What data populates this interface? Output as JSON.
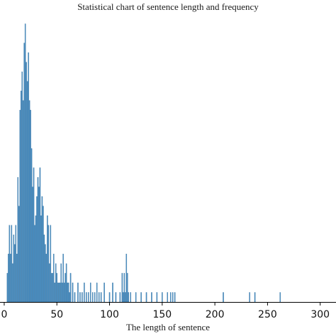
{
  "chart_data": {
    "type": "bar",
    "title": "Statistical chart of sentence length and frequency",
    "xlabel": "The length of sentence",
    "ylabel": "",
    "xlim": [
      -4,
      315
    ],
    "ylim": [
      0,
      30
    ],
    "xticks": [
      0,
      50,
      100,
      150,
      200,
      250,
      300
    ],
    "x_tick_labels": [
      "0",
      "50",
      "100",
      "150",
      "200",
      "250",
      "300"
    ],
    "grid": false,
    "bar_color": "#4a8ec2",
    "series": [
      {
        "x": [
          3,
          4,
          5,
          6,
          7,
          8,
          9,
          10,
          11,
          12,
          13,
          14,
          15,
          16,
          17,
          18,
          19,
          20,
          21,
          22,
          23,
          24,
          25,
          26,
          27,
          28,
          29,
          30,
          31,
          32,
          33,
          34,
          35,
          36,
          37,
          38,
          39,
          40,
          41,
          42,
          43,
          44,
          45,
          46,
          47,
          48,
          49,
          50,
          51,
          52,
          53,
          54,
          55,
          56,
          57,
          58,
          59,
          60,
          61,
          62,
          63,
          65,
          67,
          70,
          72,
          74,
          76,
          78,
          80,
          82,
          84,
          86,
          88,
          90,
          92,
          95,
          100,
          103,
          106,
          110,
          112,
          113,
          114,
          115,
          116,
          117,
          118,
          120,
          125,
          130,
          135,
          140,
          145,
          150,
          155,
          158,
          160,
          162,
          208,
          233,
          238,
          262
        ],
        "values": [
          3,
          5,
          8,
          5,
          8,
          4,
          7,
          6,
          8,
          5,
          13,
          10,
          20,
          22,
          24,
          21,
          27,
          29,
          25,
          23,
          26,
          21,
          20,
          16,
          12,
          14,
          8,
          9,
          11,
          13,
          12,
          14,
          9,
          11,
          10,
          7,
          6,
          5,
          9,
          8,
          4,
          8,
          3,
          3,
          5,
          2,
          4,
          3,
          2,
          2,
          2,
          4,
          2,
          5,
          2,
          3,
          4,
          2,
          2,
          1,
          3,
          2,
          1,
          2,
          1,
          1,
          2,
          1,
          1,
          2,
          1,
          1,
          2,
          1,
          1,
          2,
          1,
          2,
          1,
          1,
          3,
          1,
          3,
          1,
          5,
          3,
          1,
          1,
          1,
          1,
          1,
          1,
          1,
          1,
          1,
          1,
          1,
          1,
          1,
          1,
          1,
          1
        ]
      }
    ]
  }
}
